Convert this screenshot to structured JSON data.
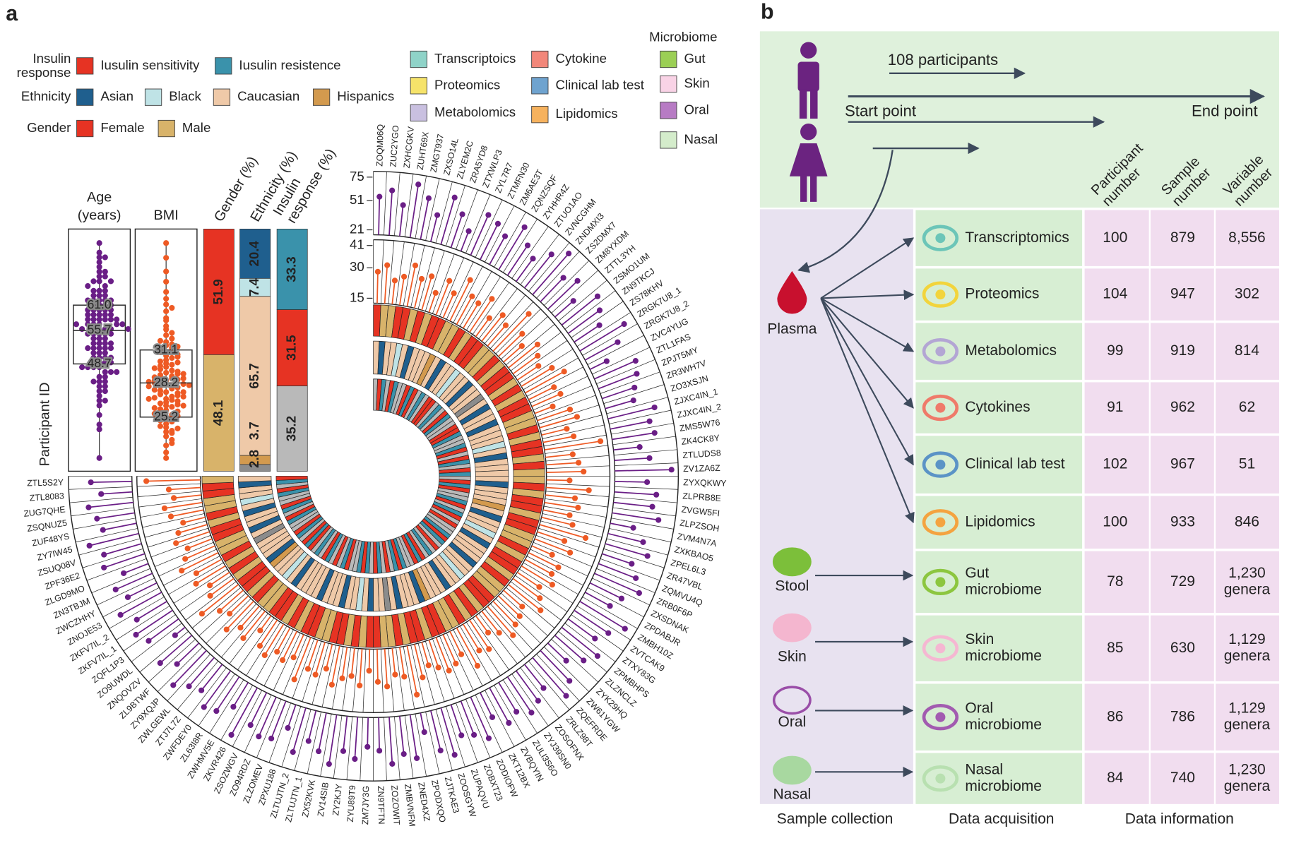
{
  "chart_data": {
    "type": "circular",
    "panel_label": "a",
    "axis_label": "Participant ID",
    "legend": [
      {
        "title": [
          "Insulin",
          "response"
        ],
        "items": [
          {
            "name": "Iusulin sensitivity",
            "color": "#e63323"
          },
          {
            "name": "Iusulin resistence",
            "color": "#3a92ab"
          }
        ]
      },
      {
        "title": [
          "Ethnicity"
        ],
        "items": [
          {
            "name": "Asian",
            "color": "#1f5f8e"
          },
          {
            "name": "Black",
            "color": "#bfe3e6"
          },
          {
            "name": "Caucasian",
            "color": "#efc9a8"
          },
          {
            "name": "Hispanics",
            "color": "#d39a4e"
          }
        ]
      },
      {
        "title": [
          "Gender"
        ],
        "items": [
          {
            "name": "Female",
            "color": "#e63323"
          },
          {
            "name": "Male",
            "color": "#d8b36a"
          }
        ]
      },
      {
        "items": [
          {
            "name": "Transcriptoics",
            "color": "#8fd3c8"
          },
          {
            "name": "Proteomics",
            "color": "#f6e36a"
          },
          {
            "name": "Metabolomics",
            "color": "#c9c0e0"
          },
          {
            "name": "Cytokine",
            "color": "#f2877a"
          },
          {
            "name": "Clinical lab test",
            "color": "#6fa3cf"
          },
          {
            "name": "Lipidomics",
            "color": "#f6b25e"
          }
        ]
      },
      {
        "title": [
          "Microbiome"
        ],
        "items": [
          {
            "name": "Gut",
            "color": "#9bcf55"
          },
          {
            "name": "Skin",
            "color": "#f9d3e6"
          },
          {
            "name": "Oral",
            "color": "#b77bc4"
          },
          {
            "name": "Nasal",
            "color": "#d4eccb"
          }
        ]
      }
    ],
    "participants": [
      "ZOQM06Q",
      "ZUC2YGO",
      "ZXHCGKV",
      "ZUHT69X",
      "ZMGT937",
      "ZXSO14L",
      "ZLYEM2C",
      "ZRA5YD8",
      "ZTXWLP3",
      "ZYL7R7",
      "ZTMFN30",
      "ZM6AE3T",
      "ZQNZSQF",
      "ZYHHR4Z",
      "ZTUO1AO",
      "ZVNCGHM",
      "ZNDMXI3",
      "ZS2DMX7",
      "ZM8YXDM",
      "ZTTL3YH",
      "ZSMO1UM",
      "ZN9TKCJ",
      "ZS78KHV",
      "ZRGK7U8_1",
      "ZRGK7U8_2",
      "ZVC4YUG",
      "ZTL1FAS",
      "ZPJT5MY",
      "ZR3WH7V",
      "ZO3XSJN",
      "ZJXC4IN_1",
      "ZJXC4IN_2",
      "ZMS5W76",
      "ZK4CK8Y",
      "ZTLUDS8",
      "ZV1ZA6Z",
      "ZYXQKWY",
      "ZLPRB8E",
      "ZVGW5FI",
      "ZLPZSOH",
      "ZVM4N7A",
      "ZXKBAO5",
      "ZPEL6L3",
      "ZR47VBL",
      "ZQMVU4Q",
      "ZRB0F6P",
      "ZXSDNAK",
      "ZPDABJR",
      "ZMBH10Z",
      "ZVTCAK9",
      "ZTXY83G",
      "ZPMBHPS",
      "ZLZNCLZ",
      "ZYK29HQ",
      "ZW61YGW",
      "ZQEFRDE",
      "ZRLZ98T",
      "ZOSOFNX",
      "ZYJ39SN0",
      "ZULI3S6O",
      "ZVBQYIN",
      "ZKT12BX",
      "ZODIOFW",
      "ZOBXT23",
      "ZUPAQVU",
      "ZOOSGYW",
      "ZJTKAE3",
      "ZPODXQO",
      "ZNED4XZ",
      "ZMBVNFM",
      "ZOZOWIT",
      "ZN9TFTN",
      "ZM7JY3G",
      "ZYU89T9",
      "ZY2KJY",
      "ZV14SIB",
      "ZX52KVK",
      "ZLTUJTN_1",
      "ZLTUJTN_2",
      "ZPXU188",
      "ZLZOMEV",
      "ZO94RDZ",
      "ZSOZWGV",
      "ZKVR426",
      "ZWHMV5E",
      "ZL63I8R",
      "ZWFDEY0",
      "ZTJ7L7Z",
      "ZWLGEWL",
      "ZY9XQJP",
      "ZL9BTWF",
      "ZNQOVZV",
      "ZO9UWDL",
      "ZQFL1P3",
      "ZKFV7IL_1",
      "ZKFV7IL_2",
      "ZNOJE53",
      "ZWCZHHY",
      "ZN3TBJM",
      "ZLGD9MO",
      "ZPF36E2",
      "ZSUQ08V",
      "ZY7IW45",
      "ZUF48YS",
      "ZSQNUZ5",
      "ZUG7QHE",
      "ZTL8083",
      "ZTL5S2Y"
    ],
    "tracks": [
      {
        "label": [
          "Age",
          "(years)"
        ],
        "color": "#6a1e86",
        "ylim": [
          21,
          75
        ],
        "yticks": [
          21,
          51,
          75
        ],
        "box": {
          "values": [
            61.0,
            55.7,
            48.7
          ],
          "value_labels": [
            "61.0",
            "55.7",
            "48.7"
          ]
        },
        "values": [
          55,
          62,
          48,
          71,
          59,
          44,
          66,
          52,
          38,
          61,
          57,
          49,
          67,
          53,
          45,
          60,
          72,
          50,
          58,
          41,
          63,
          56,
          47,
          69,
          54,
          35,
          62,
          58,
          51,
          46,
          65,
          57,
          60,
          43,
          52,
          74,
          49,
          59,
          56,
          64,
          40,
          53,
          61,
          48,
          57,
          66,
          52,
          45,
          70,
          58,
          50,
          63,
          55,
          42,
          59,
          68,
          47,
          54,
          60,
          51,
          57,
          44,
          62,
          53,
          49,
          66,
          58,
          36,
          61,
          55,
          64,
          50,
          46,
          59,
          52,
          67,
          56,
          48,
          63,
          41,
          57,
          60,
          53,
          71,
          45,
          58,
          62,
          50,
          55,
          65,
          47,
          59,
          29,
          54,
          61,
          52,
          64,
          49,
          57,
          43,
          60,
          56,
          68,
          51,
          55,
          62,
          48,
          58
        ]
      },
      {
        "label": [
          "BMI"
        ],
        "color": "#ee5a24",
        "ylim": [
          15,
          41
        ],
        "yticks": [
          15,
          30,
          41
        ],
        "box": {
          "values": [
            31.1,
            28.2,
            25.2
          ]
        },
        "values": [
          28.1,
          31.5,
          24.3,
          26.8,
          33.2,
          27.4,
          29.9,
          22.7,
          30.6,
          25.8,
          35.1,
          28.4,
          27.0,
          32.4,
          23.9,
          29.1,
          26.2,
          38.0,
          28.8,
          24.6,
          31.0,
          27.7,
          25.1,
          30.2,
          34.5,
          26.5,
          28.0,
          22.1,
          29.6,
          31.8,
          25.4,
          27.9,
          40.5,
          26.1,
          28.6,
          30.9,
          24.0,
          33.7,
          27.2,
          29.3,
          25.9,
          28.3,
          36.2,
          26.7,
          31.3,
          23.5,
          28.9,
          27.5,
          30.4,
          25.6,
          29.0,
          32.9,
          24.8,
          27.1,
          28.5,
          31.6,
          26.3,
          22.9,
          29.8,
          27.8,
          33.9,
          25.2,
          28.2,
          30.1,
          26.9,
          24.4,
          29.4,
          37.1,
          27.3,
          25.7,
          31.2,
          28.7,
          23.2,
          30.7,
          26.4,
          28.1,
          32.1,
          25.0,
          29.2,
          27.6,
          34.8,
          24.9,
          28.4,
          26.0,
          30.5,
          27.9,
          21.6,
          29.7,
          26.6,
          31.9,
          25.3,
          28.0,
          35.6,
          27.0,
          24.2,
          29.5,
          26.8,
          32.6,
          28.6,
          25.5,
          30.0,
          27.4,
          23.8,
          29.0,
          31.4,
          26.2,
          28.3,
          39.2
        ]
      }
    ],
    "rings": [
      {
        "label": [
          "Gender (%)"
        ],
        "colors": [
          "#e63323",
          "#d8b36a"
        ],
        "percent": [
          51.9,
          48.1
        ],
        "codes": [
          0,
          1,
          1,
          0,
          0,
          1,
          0,
          1,
          0,
          0,
          1,
          1,
          0,
          1,
          0,
          0,
          1,
          1,
          0,
          1,
          0,
          0,
          1,
          0,
          1,
          0,
          0,
          1,
          1,
          0,
          1,
          0,
          0,
          1,
          0,
          1,
          1,
          0,
          1,
          0,
          0,
          1,
          0,
          0,
          1,
          1,
          0,
          1,
          0,
          0,
          1,
          0,
          1,
          1,
          0,
          0,
          1,
          0,
          1,
          0,
          1,
          1,
          0,
          0,
          1,
          0,
          0,
          1,
          0,
          1,
          1,
          0,
          0,
          1,
          0,
          1,
          0,
          0,
          1,
          1,
          0,
          0,
          1,
          0,
          1,
          0,
          0,
          1,
          1,
          0,
          1,
          0,
          0,
          1,
          0,
          1,
          0,
          1,
          1,
          0,
          0,
          1,
          0,
          1,
          1,
          0,
          0,
          1
        ]
      },
      {
        "label": [
          "Ethnicity (%)"
        ],
        "colors": [
          "#1f5f8e",
          "#bfe3e6",
          "#efc9a8",
          "#d39a4e",
          "#8c8c8c"
        ],
        "percent": [
          20.4,
          7.4,
          65.7,
          3.7,
          2.8
        ],
        "codes": [
          2,
          0,
          2,
          2,
          1,
          2,
          0,
          2,
          2,
          2,
          3,
          2,
          0,
          2,
          2,
          1,
          2,
          2,
          0,
          2,
          2,
          4,
          2,
          0,
          2,
          2,
          0,
          2,
          2,
          2,
          1,
          2,
          0,
          2,
          2,
          2,
          2,
          0,
          2,
          2,
          2,
          3,
          2,
          0,
          2,
          2,
          1,
          2,
          0,
          2,
          2,
          2,
          0,
          2,
          2,
          1,
          2,
          2,
          0,
          2,
          2,
          2,
          3,
          0,
          2,
          2,
          2,
          0,
          2,
          4,
          2,
          2,
          0,
          2,
          1,
          2,
          2,
          0,
          2,
          2,
          2,
          0,
          2,
          2,
          2,
          2,
          0,
          2,
          1,
          2,
          2,
          3,
          0,
          2,
          2,
          2,
          4,
          2,
          0,
          2,
          2,
          0,
          2,
          1,
          2,
          2,
          0,
          2
        ]
      },
      {
        "label": [
          "Insulin",
          "response (%)"
        ],
        "colors": [
          "#3a92ab",
          "#e63323",
          "#b9b9b9"
        ],
        "percent": [
          33.3,
          31.5,
          35.2
        ],
        "codes": [
          2,
          1,
          0,
          2,
          1,
          0,
          2,
          2,
          1,
          0,
          1,
          2,
          0,
          2,
          1,
          1,
          2,
          0,
          2,
          1,
          0,
          2,
          2,
          1,
          1,
          0,
          2,
          2,
          0,
          1,
          2,
          1,
          0,
          2,
          1,
          0,
          2,
          1,
          0,
          1,
          2,
          2,
          0,
          1,
          2,
          0,
          1,
          2,
          1,
          2,
          2,
          0,
          1,
          0,
          2,
          1,
          2,
          0,
          2,
          1,
          0,
          1,
          2,
          2,
          0,
          1,
          0,
          2,
          1,
          2,
          0,
          1,
          2,
          0,
          1,
          0,
          2,
          2,
          1,
          0,
          2,
          1,
          2,
          0,
          1,
          2,
          0,
          2,
          1,
          0,
          1,
          2,
          0,
          1,
          2,
          2,
          0,
          1,
          2,
          0,
          1,
          2,
          2,
          0,
          1,
          2,
          0,
          1
        ]
      }
    ]
  },
  "panel_b": {
    "label": "b",
    "timeline": {
      "participants": "108 participants",
      "start": "Start point",
      "end": "End point"
    },
    "column_headers": [
      [
        "Participant",
        "number"
      ],
      [
        "Sample",
        "number"
      ],
      [
        "Variable",
        "number"
      ]
    ],
    "sources": [
      "Plasma",
      "Stool",
      "Skin",
      "Oral",
      "Nasal"
    ],
    "rows": [
      {
        "name": [
          "Transcriptomics"
        ],
        "participants": "100",
        "samples": "879",
        "variables": [
          "8,556"
        ]
      },
      {
        "name": [
          "Proteomics"
        ],
        "participants": "104",
        "samples": "947",
        "variables": [
          "302"
        ]
      },
      {
        "name": [
          "Metabolomics"
        ],
        "participants": "99",
        "samples": "919",
        "variables": [
          "814"
        ]
      },
      {
        "name": [
          "Cytokines"
        ],
        "participants": "91",
        "samples": "962",
        "variables": [
          "62"
        ]
      },
      {
        "name": [
          "Clinical lab test"
        ],
        "participants": "102",
        "samples": "967",
        "variables": [
          "51"
        ]
      },
      {
        "name": [
          "Lipidomics"
        ],
        "participants": "100",
        "samples": "933",
        "variables": [
          "846"
        ]
      },
      {
        "name": [
          "Gut",
          "microbiome"
        ],
        "participants": "78",
        "samples": "729",
        "variables": [
          "1,230",
          "genera"
        ]
      },
      {
        "name": [
          "Skin",
          "microbiome"
        ],
        "participants": "85",
        "samples": "630",
        "variables": [
          "1,129",
          "genera"
        ]
      },
      {
        "name": [
          "Oral",
          "microbiome"
        ],
        "participants": "86",
        "samples": "786",
        "variables": [
          "1,129",
          "genera"
        ]
      },
      {
        "name": [
          "Nasal",
          "microbiome"
        ],
        "participants": "84",
        "samples": "740",
        "variables": [
          "1,230",
          "genera"
        ]
      }
    ],
    "footer": [
      "Sample collection",
      "Data acquisition",
      "Data information"
    ]
  }
}
